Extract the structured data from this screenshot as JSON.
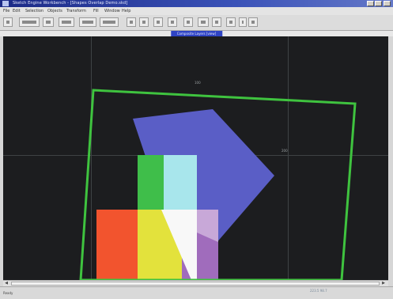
{
  "window": {
    "title": "Sketch Engine Workbench - [Shapes Overlap Demo.skd]"
  },
  "menu": {
    "items": [
      "File",
      "Edit",
      "Selection",
      "Objects",
      "Transform",
      "Fill",
      "Window",
      "Help"
    ]
  },
  "toolbar": {
    "buttons": [
      "new",
      "open",
      "save",
      "print",
      "cut",
      "copy",
      "paste",
      "undo",
      "redo",
      "zoom-in",
      "zoom-out",
      "select",
      "rotate",
      "fill",
      "stroke",
      "color"
    ]
  },
  "view": {
    "title": "Composite Layers [view]"
  },
  "canvas": {
    "axis_labels": {
      "top": "100",
      "right": "200"
    },
    "shapes": {
      "outline_color": "#3fc33f",
      "polygon_color": "#5a5ec6",
      "green_rect_color": "#3fbe4a",
      "cyan_rect_color": "#a8e6ec",
      "red_rect_color": "#f2542e",
      "yellow_rect_color": "#e3e23c",
      "white_triangle_color": "#f8f8f8",
      "purple_rect_color": "#a06cbc"
    }
  },
  "statusbar": {
    "left_text": "Ready",
    "coords_text": "223.5   98.7"
  }
}
